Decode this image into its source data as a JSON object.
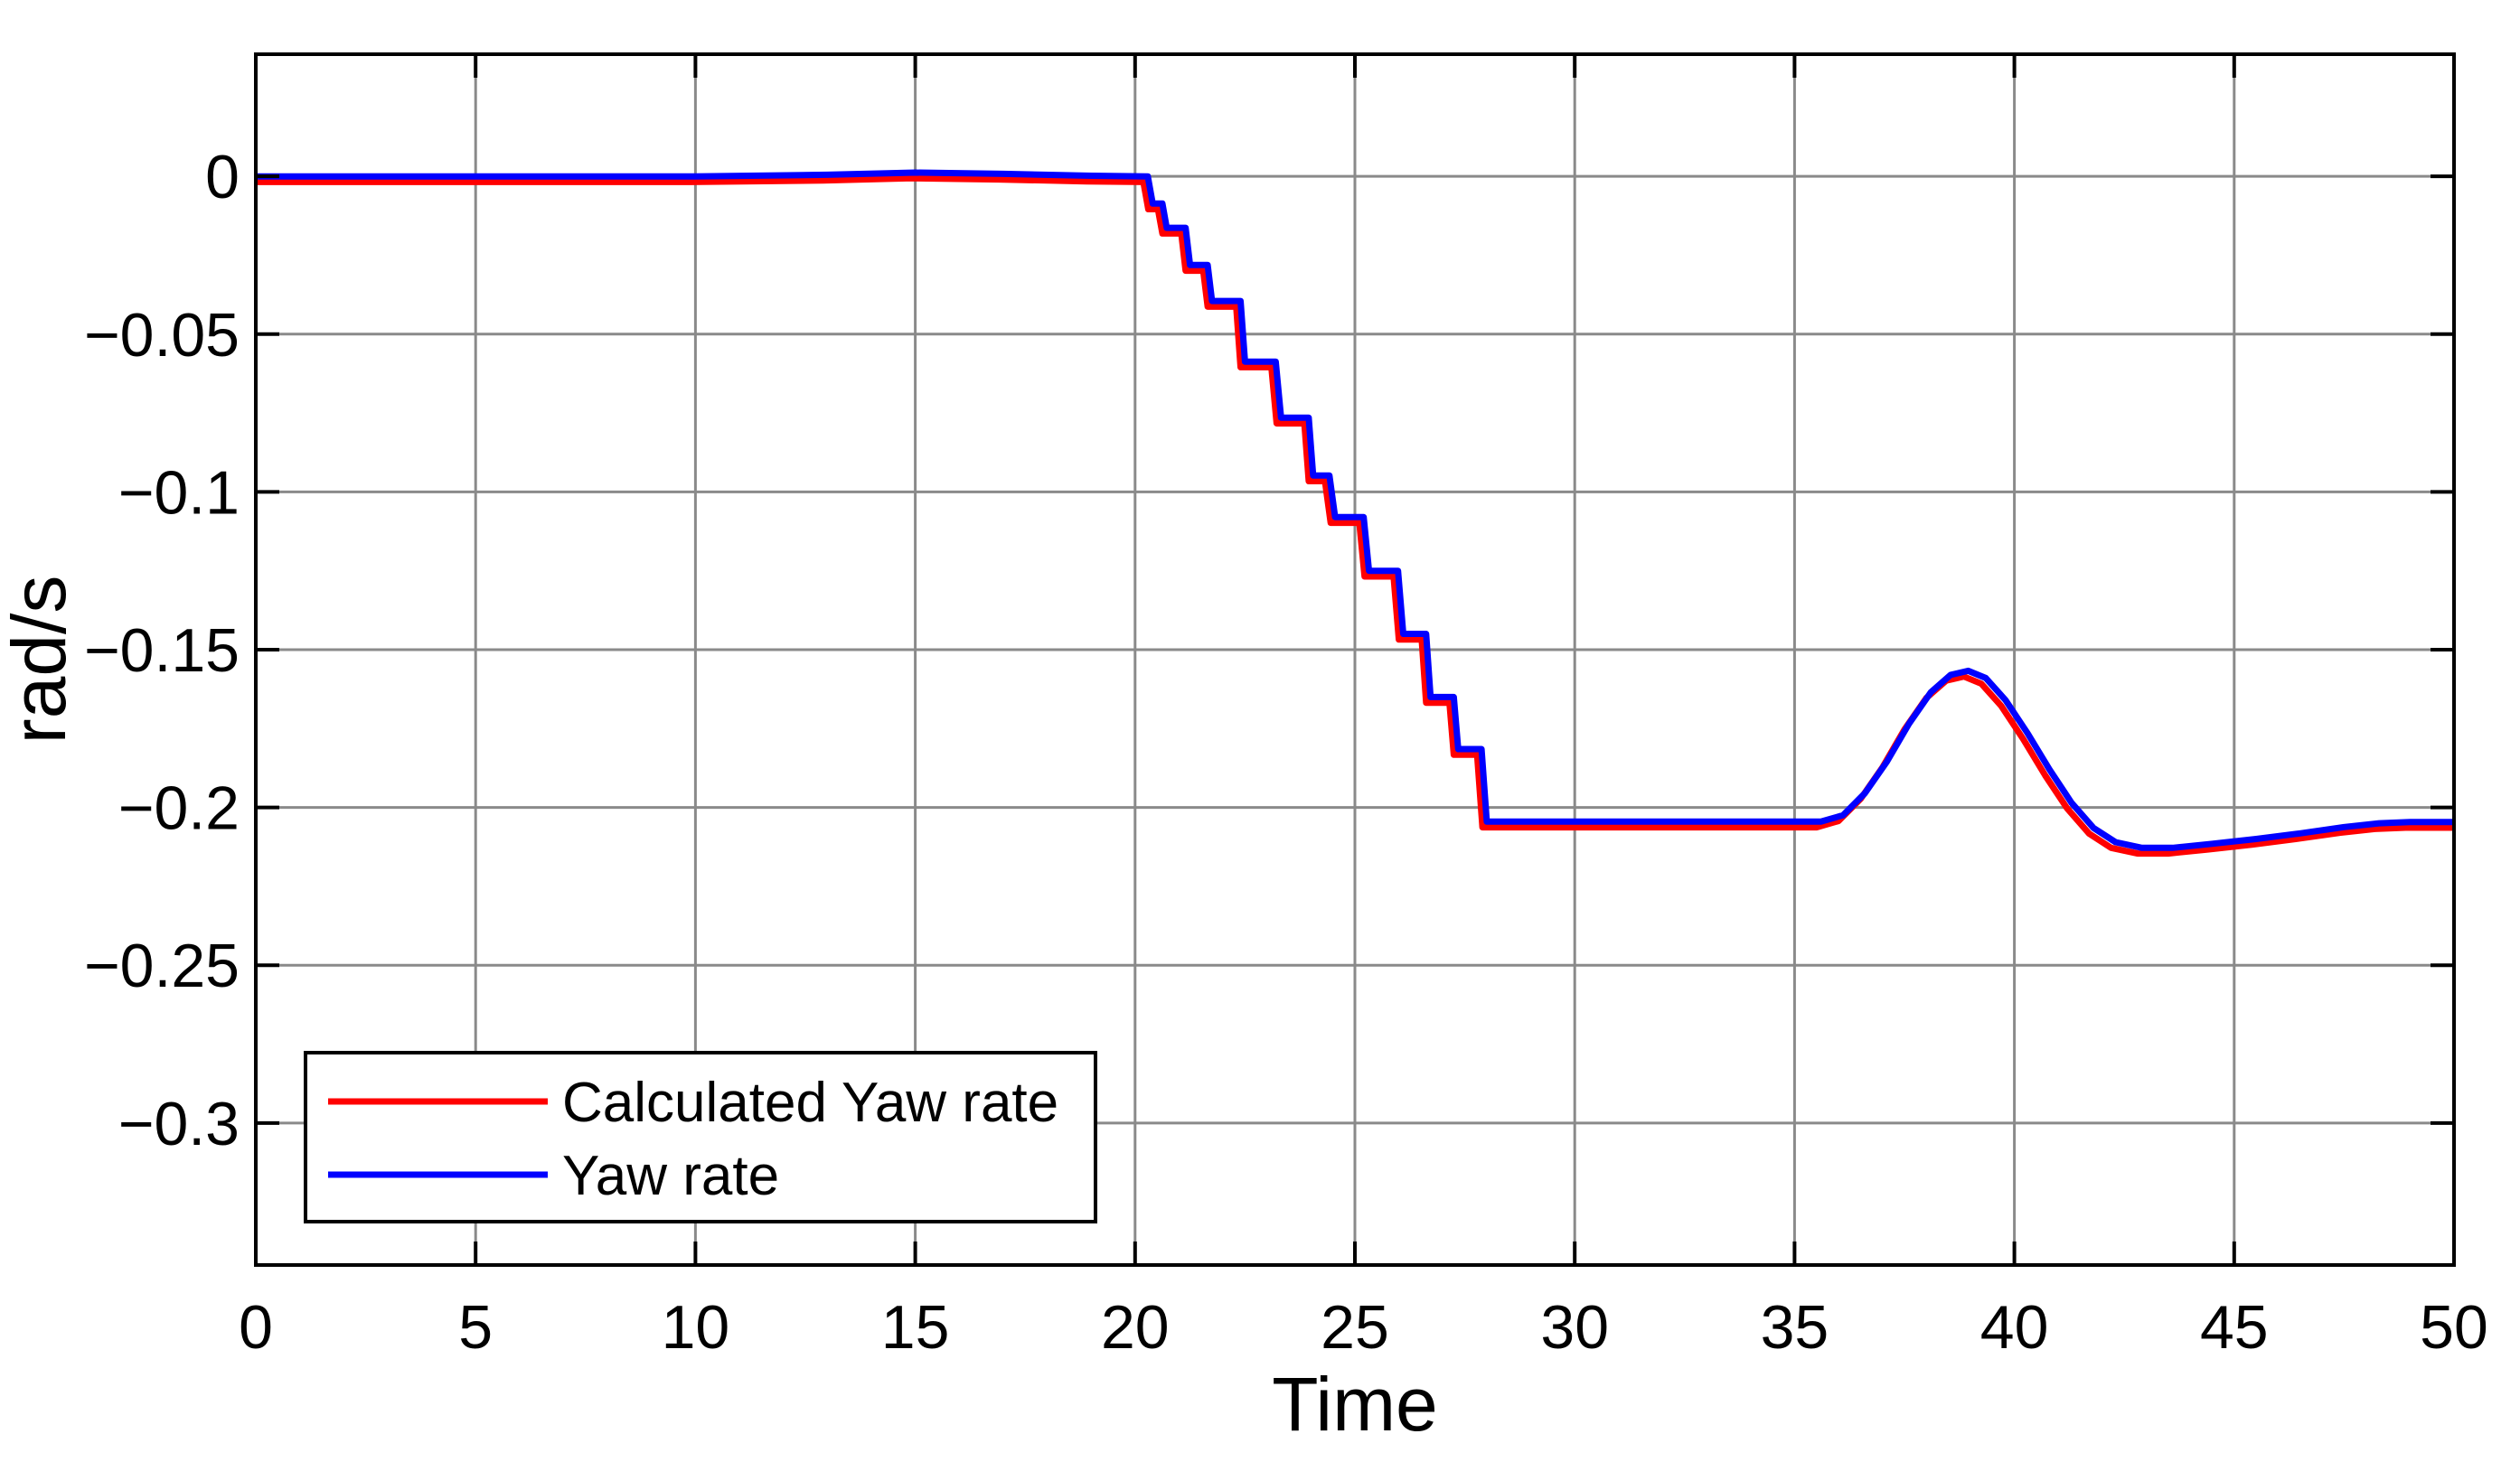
{
  "figure_title": "",
  "axes": {
    "xlabel": "Time",
    "ylabel": "rad/s",
    "xlim": [
      0,
      50
    ],
    "ylim": [
      -0.345,
      0.0387
    ],
    "grid": true,
    "x_ticks": [
      0,
      5,
      10,
      15,
      20,
      25,
      30,
      35,
      40,
      45,
      50
    ],
    "x_tick_labels": [
      "0",
      "5",
      "10",
      "15",
      "20",
      "25",
      "30",
      "35",
      "40",
      "45",
      "50"
    ],
    "y_ticks": [
      0,
      -0.05,
      -0.1,
      -0.15,
      -0.2,
      -0.25,
      -0.3
    ],
    "y_tick_labels": [
      "0",
      "−0.05",
      "−0.1",
      "−0.15",
      "−0.2",
      "−0.25",
      "−0.3"
    ]
  },
  "legend": {
    "position": "bottom-left",
    "items": [
      {
        "label": "Calculated Yaw rate",
        "color": "#ff0000"
      },
      {
        "label": "Yaw rate",
        "color": "#0000ff"
      }
    ]
  },
  "chart_data": {
    "type": "line",
    "title": "",
    "xlabel": "Time",
    "ylabel": "rad/s",
    "xlim": [
      0,
      50
    ],
    "ylim": [
      -0.345,
      0.0387
    ],
    "grid": true,
    "legend_position": "bottom-left",
    "series": [
      {
        "name": "Calculated Yaw rate",
        "color": "#ff0000",
        "points": [
          [
            0,
            -0.0018
          ],
          [
            9.9,
            -0.0018
          ],
          [
            12.9,
            -0.0013
          ],
          [
            14.9,
            -0.0006
          ],
          [
            16.9,
            -0.001
          ],
          [
            18.9,
            -0.0016
          ],
          [
            20.19,
            -0.0018
          ],
          [
            20.3,
            -0.0104
          ],
          [
            20.52,
            -0.0104
          ],
          [
            20.62,
            -0.0181
          ],
          [
            21.05,
            -0.0181
          ],
          [
            21.15,
            -0.0299
          ],
          [
            21.55,
            -0.0299
          ],
          [
            21.65,
            -0.0413
          ],
          [
            22.3,
            -0.0413
          ],
          [
            22.4,
            -0.0605
          ],
          [
            23.1,
            -0.0605
          ],
          [
            23.22,
            -0.0783
          ],
          [
            23.85,
            -0.0783
          ],
          [
            23.95,
            -0.0966
          ],
          [
            24.32,
            -0.0966
          ],
          [
            24.45,
            -0.1098
          ],
          [
            25.1,
            -0.1098
          ],
          [
            25.22,
            -0.1268
          ],
          [
            25.88,
            -0.1268
          ],
          [
            26.0,
            -0.1468
          ],
          [
            26.52,
            -0.1468
          ],
          [
            26.62,
            -0.1668
          ],
          [
            27.15,
            -0.1668
          ],
          [
            27.25,
            -0.1833
          ],
          [
            27.78,
            -0.1833
          ],
          [
            27.9,
            -0.2063
          ],
          [
            35.5,
            -0.2063
          ],
          [
            36.0,
            -0.2043
          ],
          [
            36.5,
            -0.1973
          ],
          [
            37.0,
            -0.1873
          ],
          [
            37.5,
            -0.1753
          ],
          [
            38.0,
            -0.1653
          ],
          [
            38.45,
            -0.1598
          ],
          [
            38.85,
            -0.1585
          ],
          [
            39.25,
            -0.1608
          ],
          [
            39.7,
            -0.1678
          ],
          [
            40.2,
            -0.1783
          ],
          [
            40.7,
            -0.1898
          ],
          [
            41.2,
            -0.2003
          ],
          [
            41.7,
            -0.2083
          ],
          [
            42.2,
            -0.2128
          ],
          [
            42.8,
            -0.2146
          ],
          [
            43.5,
            -0.2146
          ],
          [
            44.4,
            -0.2133
          ],
          [
            45.4,
            -0.2118
          ],
          [
            46.4,
            -0.21
          ],
          [
            47.4,
            -0.208
          ],
          [
            48.2,
            -0.2068
          ],
          [
            48.9,
            -0.2064
          ],
          [
            50,
            -0.2064
          ]
        ]
      },
      {
        "name": "Yaw rate",
        "color": "#0000ff",
        "points": [
          [
            0,
            0
          ],
          [
            10,
            0
          ],
          [
            13,
            0.0005
          ],
          [
            15,
            0.0012
          ],
          [
            17,
            0.0008
          ],
          [
            19,
            0.0002
          ],
          [
            20.29,
            0
          ],
          [
            20.4,
            -0.0086
          ],
          [
            20.62,
            -0.0086
          ],
          [
            20.72,
            -0.0163
          ],
          [
            21.15,
            -0.0163
          ],
          [
            21.25,
            -0.0281
          ],
          [
            21.65,
            -0.0281
          ],
          [
            21.75,
            -0.0395
          ],
          [
            22.4,
            -0.0395
          ],
          [
            22.5,
            -0.0587
          ],
          [
            23.2,
            -0.0587
          ],
          [
            23.32,
            -0.0765
          ],
          [
            23.95,
            -0.0765
          ],
          [
            24.05,
            -0.0948
          ],
          [
            24.42,
            -0.0948
          ],
          [
            24.55,
            -0.108
          ],
          [
            25.2,
            -0.108
          ],
          [
            25.32,
            -0.125
          ],
          [
            25.98,
            -0.125
          ],
          [
            26.1,
            -0.145
          ],
          [
            26.62,
            -0.145
          ],
          [
            26.72,
            -0.165
          ],
          [
            27.25,
            -0.165
          ],
          [
            27.35,
            -0.1815
          ],
          [
            27.88,
            -0.1815
          ],
          [
            28.0,
            -0.2045
          ],
          [
            35.6,
            -0.2045
          ],
          [
            36.1,
            -0.2025
          ],
          [
            36.6,
            -0.1955
          ],
          [
            37.1,
            -0.1855
          ],
          [
            37.6,
            -0.1735
          ],
          [
            38.1,
            -0.1635
          ],
          [
            38.55,
            -0.158
          ],
          [
            38.95,
            -0.1567
          ],
          [
            39.35,
            -0.159
          ],
          [
            39.8,
            -0.166
          ],
          [
            40.3,
            -0.1765
          ],
          [
            40.8,
            -0.188
          ],
          [
            41.3,
            -0.1985
          ],
          [
            41.8,
            -0.2065
          ],
          [
            42.3,
            -0.211
          ],
          [
            42.9,
            -0.2128
          ],
          [
            43.6,
            -0.2128
          ],
          [
            44.5,
            -0.2115
          ],
          [
            45.5,
            -0.21
          ],
          [
            46.5,
            -0.2082
          ],
          [
            47.5,
            -0.2062
          ],
          [
            48.3,
            -0.205
          ],
          [
            49.0,
            -0.2046
          ],
          [
            50,
            -0.2046
          ]
        ]
      }
    ]
  }
}
